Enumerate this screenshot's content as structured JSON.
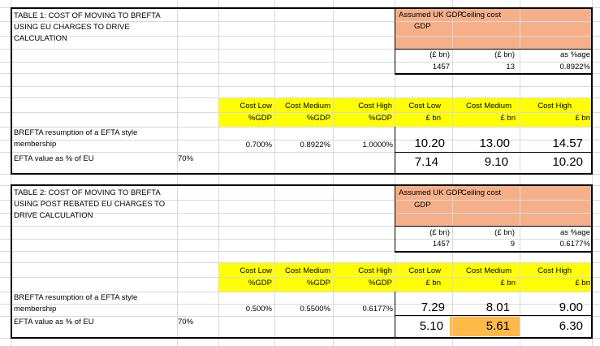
{
  "tables": [
    {
      "title": "TABLE 1: COST OF MOVING TO BREFTA USING EU CHARGES TO DRIVE CALCULATION",
      "assumed_uk_gdp_label": "Assumed UK GDP",
      "ceiling_cost_label": "Ceiling cost",
      "unit_gdp": "(£ bn)",
      "unit_ceiling": "(£ bn)",
      "as_pct_label": "as %age",
      "gdp_value": "1457",
      "ceiling_value": "13",
      "pct_value": "0.8922%",
      "headers": {
        "cost_low_gdp": [
          "Cost Low",
          "%GDP"
        ],
        "cost_medium_gdp": [
          "Cost Medium",
          "%GDP"
        ],
        "cost_high_gdp": [
          "Cost High",
          "%GDP"
        ],
        "cost_low_bn": [
          "Cost Low",
          "£ bn"
        ],
        "cost_medium_bn": [
          "Cost Medium",
          "£ bn"
        ],
        "cost_high_bn": [
          "Cost High",
          "£ bn"
        ]
      },
      "row1_label": "BREFTA resumption of a EFTA style membership",
      "row1": {
        "low_pct": "0.700%",
        "med_pct": "0.8922%",
        "high_pct": "1.0000%",
        "low_bn": "10.20",
        "med_bn": "13.00",
        "high_bn": "14.57"
      },
      "row2_label": "EFTA value as % of EU",
      "row2_pct": "70%",
      "row2": {
        "low_bn": "7.14",
        "med_bn": "9.10",
        "high_bn": "10.20"
      }
    },
    {
      "title": "TABLE 2: COST OF MOVING TO BREFTA USING POST REBATED EU CHARGES TO DRIVE CALCULATION",
      "assumed_uk_gdp_label": "Assumed UK GDP",
      "ceiling_cost_label": "Ceiling cost",
      "unit_gdp": "(£ bn)",
      "unit_ceiling": "(£ bn)",
      "as_pct_label": "as %age",
      "gdp_value": "1457",
      "ceiling_value": "9",
      "pct_value": "0.6177%",
      "headers": {
        "cost_low_gdp": [
          "Cost Low",
          "%GDP"
        ],
        "cost_medium_gdp": [
          "Cost Medium",
          "%GDP"
        ],
        "cost_high_gdp": [
          "Cost High",
          "%GDP"
        ],
        "cost_low_bn": [
          "Cost Low",
          "£ bn"
        ],
        "cost_medium_bn": [
          "Cost Medium",
          "£ bn"
        ],
        "cost_high_bn": [
          "Cost High",
          "£ bn"
        ]
      },
      "row1_label": "BREFTA resumption of a EFTA style membership",
      "row1": {
        "low_pct": "0.500%",
        "med_pct": "0.5500%",
        "high_pct": "0.6177%",
        "low_bn": "7.29",
        "med_bn": "8.01",
        "high_bn": "9.00"
      },
      "row2_label": "EFTA value as % of EU",
      "row2_pct": "70%",
      "row2": {
        "low_bn": "5.10",
        "med_bn": "5.61",
        "high_bn": "6.30"
      }
    }
  ],
  "colors": {
    "peach": "#f5b08a",
    "yellow": "#ffff00",
    "highlight_orange": "#ffb946",
    "gridline": "#d9d9d9"
  }
}
